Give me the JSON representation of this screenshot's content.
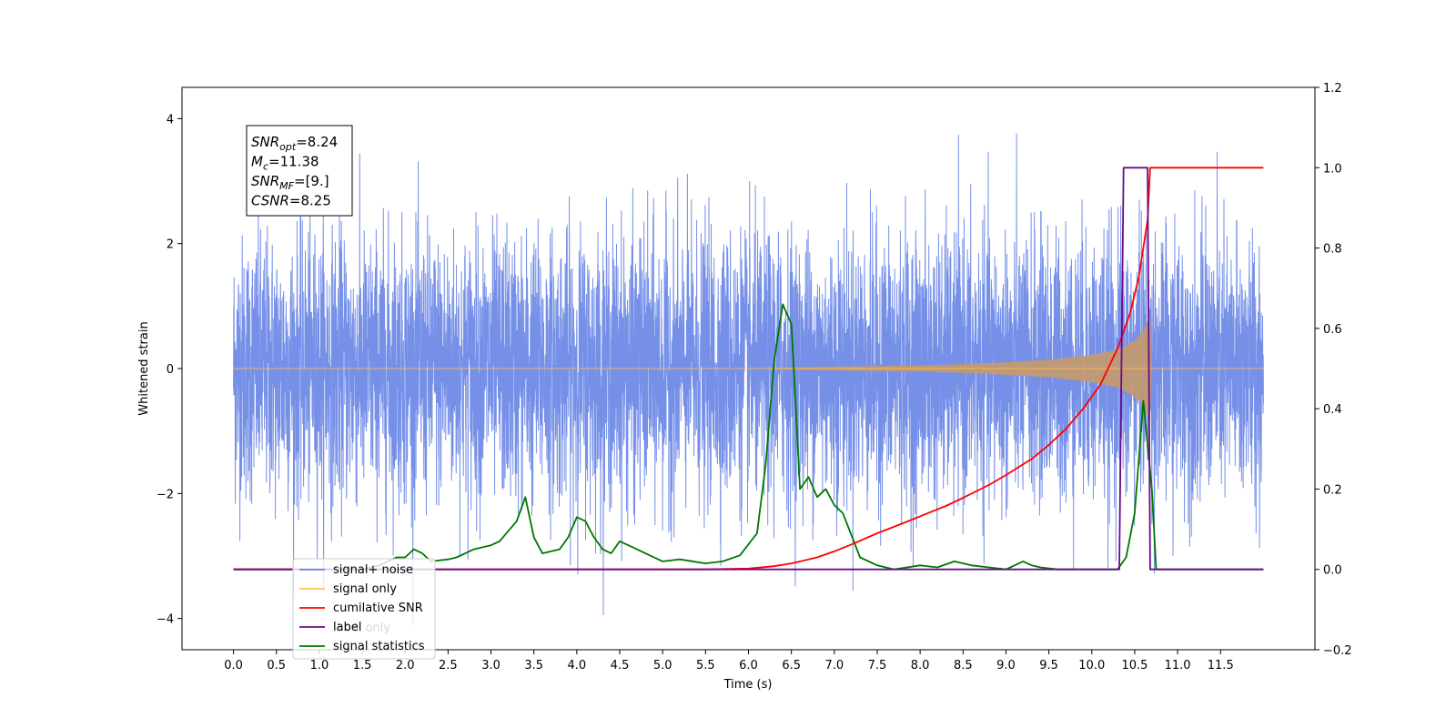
{
  "chart_data": {
    "type": "line",
    "title": "",
    "xlabel": "Time (s)",
    "ylabel": "Whitened strain",
    "y2label": "",
    "xlim": [
      -0.6,
      12.6
    ],
    "ylim": [
      -4.5,
      4.5
    ],
    "y2lim": [
      -0.2,
      1.2
    ],
    "xticks": [
      0.0,
      0.5,
      1.0,
      1.5,
      2.0,
      2.5,
      3.0,
      3.5,
      4.0,
      4.5,
      5.0,
      5.5,
      6.0,
      6.5,
      7.0,
      7.5,
      8.0,
      8.5,
      9.0,
      9.5,
      10.0,
      10.5,
      11.0,
      11.5
    ],
    "xtick_labels": [
      "0.0",
      "0.5",
      "1.0",
      "1.5",
      "2.0",
      "2.5",
      "3.0",
      "3.5",
      "4.0",
      "4.5",
      "5.0",
      "5.5",
      "6.0",
      "6.5",
      "7.0",
      "7.5",
      "8.0",
      "8.5",
      "9.0",
      "9.5",
      "10.0",
      "10.5",
      "11.0",
      "11.5"
    ],
    "yticks": [
      -4,
      -2,
      0,
      2,
      4
    ],
    "ytick_labels": [
      "−4",
      "−2",
      "0",
      "2",
      "4"
    ],
    "y2ticks": [
      -0.2,
      0.0,
      0.2,
      0.4,
      0.6,
      0.8,
      1.0,
      1.2
    ],
    "y2tick_labels": [
      "−0.2",
      "0.0",
      "0.2",
      "0.4",
      "0.6",
      "0.8",
      "1.0",
      "1.2"
    ],
    "annotation": {
      "lines": [
        {
          "base": "SNR",
          "sub": "opt",
          "value": "=8.24"
        },
        {
          "base": "M",
          "sub": "c",
          "value": "=11.38"
        },
        {
          "base": "SNR",
          "sub": "MF",
          "value": "=[9.]"
        },
        {
          "base": "CSNR",
          "sub": "",
          "value": "=8.25"
        }
      ]
    },
    "legend": {
      "placement": "lower-left",
      "entries": [
        {
          "label": "signal+ noise",
          "color": "#6a87e6"
        },
        {
          "label": "signal only",
          "color": "#ffc04d"
        },
        {
          "label": "cumilative SNR",
          "color": "#ff0000"
        },
        {
          "label": "label",
          "color": "#6a0a8a"
        },
        {
          "label": "signal statistics",
          "color": "#007700"
        }
      ],
      "hidden_text": "label only"
    },
    "series": [
      {
        "name": "signal+ noise",
        "axis": "left",
        "color": "#6a87e6",
        "description_envelope": {
          "x_range": [
            0.0,
            12.0
          ],
          "typical_amplitude": 2.2,
          "max": 4.2,
          "min": -4.1
        }
      },
      {
        "name": "signal only",
        "axis": "left",
        "color": "#ffc04d",
        "envelope": {
          "x": [
            0.0,
            6.0,
            6.5,
            7.0,
            7.5,
            8.0,
            8.5,
            9.0,
            9.5,
            10.0,
            10.3,
            10.5,
            10.6,
            10.68,
            10.7,
            12.0
          ],
          "amplitude": [
            0.0,
            0.0,
            0.02,
            0.03,
            0.04,
            0.05,
            0.07,
            0.1,
            0.14,
            0.22,
            0.3,
            0.45,
            0.6,
            0.85,
            0.0,
            0.0
          ]
        }
      },
      {
        "name": "cumilative SNR",
        "axis": "right",
        "color": "#ff0000",
        "x": [
          0.0,
          5.5,
          6.0,
          6.3,
          6.5,
          6.8,
          7.0,
          7.2,
          7.5,
          7.8,
          8.0,
          8.3,
          8.5,
          8.8,
          9.0,
          9.3,
          9.5,
          9.7,
          9.9,
          10.1,
          10.3,
          10.45,
          10.55,
          10.65,
          10.68,
          12.0
        ],
        "values": [
          0.0,
          0.0,
          0.002,
          0.008,
          0.015,
          0.03,
          0.045,
          0.062,
          0.09,
          0.115,
          0.132,
          0.158,
          0.178,
          0.21,
          0.235,
          0.275,
          0.31,
          0.35,
          0.4,
          0.46,
          0.55,
          0.64,
          0.73,
          0.87,
          1.0,
          1.0
        ]
      },
      {
        "name": "label",
        "axis": "right",
        "color": "#6a0a8a",
        "x": [
          0.0,
          10.32,
          10.37,
          10.65,
          10.68,
          12.0
        ],
        "values": [
          0.0,
          0.0,
          1.0,
          1.0,
          0.0,
          0.0
        ]
      },
      {
        "name": "signal statistics",
        "axis": "right",
        "color": "#007700",
        "x": [
          0.0,
          1.5,
          1.7,
          1.9,
          2.0,
          2.1,
          2.2,
          2.3,
          2.5,
          2.6,
          2.8,
          3.0,
          3.1,
          3.3,
          3.4,
          3.5,
          3.6,
          3.8,
          3.9,
          4.0,
          4.1,
          4.2,
          4.3,
          4.4,
          4.5,
          4.6,
          4.7,
          4.8,
          5.0,
          5.2,
          5.5,
          5.7,
          5.9,
          6.1,
          6.2,
          6.3,
          6.4,
          6.5,
          6.6,
          6.7,
          6.8,
          6.9,
          7.0,
          7.1,
          7.3,
          7.5,
          7.7,
          8.0,
          8.2,
          8.4,
          8.6,
          8.8,
          9.0,
          9.2,
          9.3,
          9.4,
          9.6,
          10.0,
          10.3,
          10.4,
          10.5,
          10.6,
          10.7,
          10.75,
          11.0,
          12.0
        ],
        "values": [
          0.0,
          0.0,
          0.01,
          0.03,
          0.03,
          0.05,
          0.04,
          0.02,
          0.025,
          0.03,
          0.05,
          0.06,
          0.07,
          0.12,
          0.18,
          0.08,
          0.04,
          0.05,
          0.08,
          0.13,
          0.12,
          0.08,
          0.05,
          0.04,
          0.07,
          0.06,
          0.05,
          0.04,
          0.02,
          0.025,
          0.015,
          0.02,
          0.035,
          0.09,
          0.26,
          0.52,
          0.66,
          0.61,
          0.2,
          0.23,
          0.18,
          0.2,
          0.16,
          0.14,
          0.03,
          0.01,
          0.0,
          0.01,
          0.005,
          0.02,
          0.01,
          0.005,
          0.0,
          0.02,
          0.01,
          0.005,
          0.0,
          0.0,
          0.0,
          0.03,
          0.14,
          0.42,
          0.2,
          0.0,
          0.0,
          0.0
        ]
      }
    ]
  }
}
